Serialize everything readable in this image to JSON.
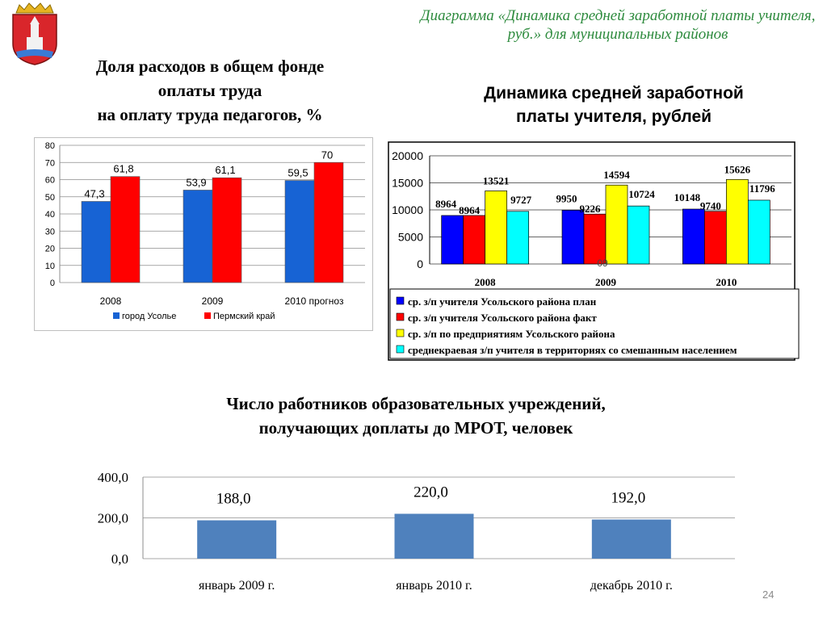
{
  "header": {
    "title": "Диаграмма «Динамика средней заработной платы учителя, руб.» для муниципальных районов",
    "title_color": "#2e8b3e"
  },
  "page_number": "24",
  "chart_data": [
    {
      "type": "bar",
      "title_lines": [
        "Доля расходов в общем фонде",
        "оплаты труда",
        "на оплату труда педагогов, %"
      ],
      "categories": [
        "2008",
        "2009",
        "2010 прогноз"
      ],
      "series": [
        {
          "name": "город Усолье",
          "values": [
            47.3,
            53.9,
            59.5
          ],
          "labels": [
            "47,3",
            "53,9",
            "59,5"
          ],
          "color": "#1763d4"
        },
        {
          "name": "Пермский край",
          "values": [
            61.8,
            61.1,
            70
          ],
          "labels": [
            "61,8",
            "61,1",
            "70"
          ],
          "color": "#ff0000"
        }
      ],
      "ylim": [
        0,
        80
      ],
      "yticks": [
        "0",
        "10",
        "20",
        "30",
        "40",
        "50",
        "60",
        "70",
        "80"
      ],
      "legend_position": "bottom",
      "grid": true
    },
    {
      "type": "bar",
      "title_lines": [
        "Динамика средней заработной",
        "платы учителя, рублей"
      ],
      "categories": [
        "2008",
        "2009",
        "2010"
      ],
      "series": [
        {
          "name": "ср. з/п учителя Усольского района план",
          "values": [
            8964,
            9950,
            10148
          ],
          "labels": [
            "8964",
            "9950",
            "10148"
          ],
          "color": "#0000ff"
        },
        {
          "name": "ср. з/п учителя Усольского района факт",
          "values": [
            8964,
            9226,
            9740
          ],
          "labels": [
            "8964",
            "9226",
            "9740"
          ],
          "color": "#ff0000"
        },
        {
          "name": "ср. з/п по предприятиям Усольского района",
          "values": [
            13521,
            14594,
            15626
          ],
          "labels": [
            "13521",
            "14594",
            "15626"
          ],
          "color": "#ffff00"
        },
        {
          "name": "среднекраевая з/п учителя в территориях со смешанным населением",
          "values": [
            9727,
            10724,
            11796
          ],
          "labels": [
            "9727",
            "10724",
            "11796"
          ],
          "color": "#00ffff"
        }
      ],
      "ylim": [
        0,
        20000
      ],
      "yticks": [
        "0",
        "5000",
        "10000",
        "15000",
        "20000"
      ],
      "annotation": "09",
      "legend_position": "bottom",
      "grid": true
    },
    {
      "type": "bar",
      "title_lines": [
        "Число работников образовательных учреждений,",
        "получающих доплаты до МРОТ, человек"
      ],
      "categories": [
        "январь 2009 г.",
        "январь 2010 г.",
        "декабрь 2010 г."
      ],
      "values": [
        188,
        220,
        192
      ],
      "labels": [
        "188,0",
        "220,0",
        "192,0"
      ],
      "color": "#4f81bd",
      "ylim": [
        0,
        400
      ],
      "yticks": [
        "0,0",
        "200,0",
        "400,0"
      ],
      "grid": true
    }
  ]
}
